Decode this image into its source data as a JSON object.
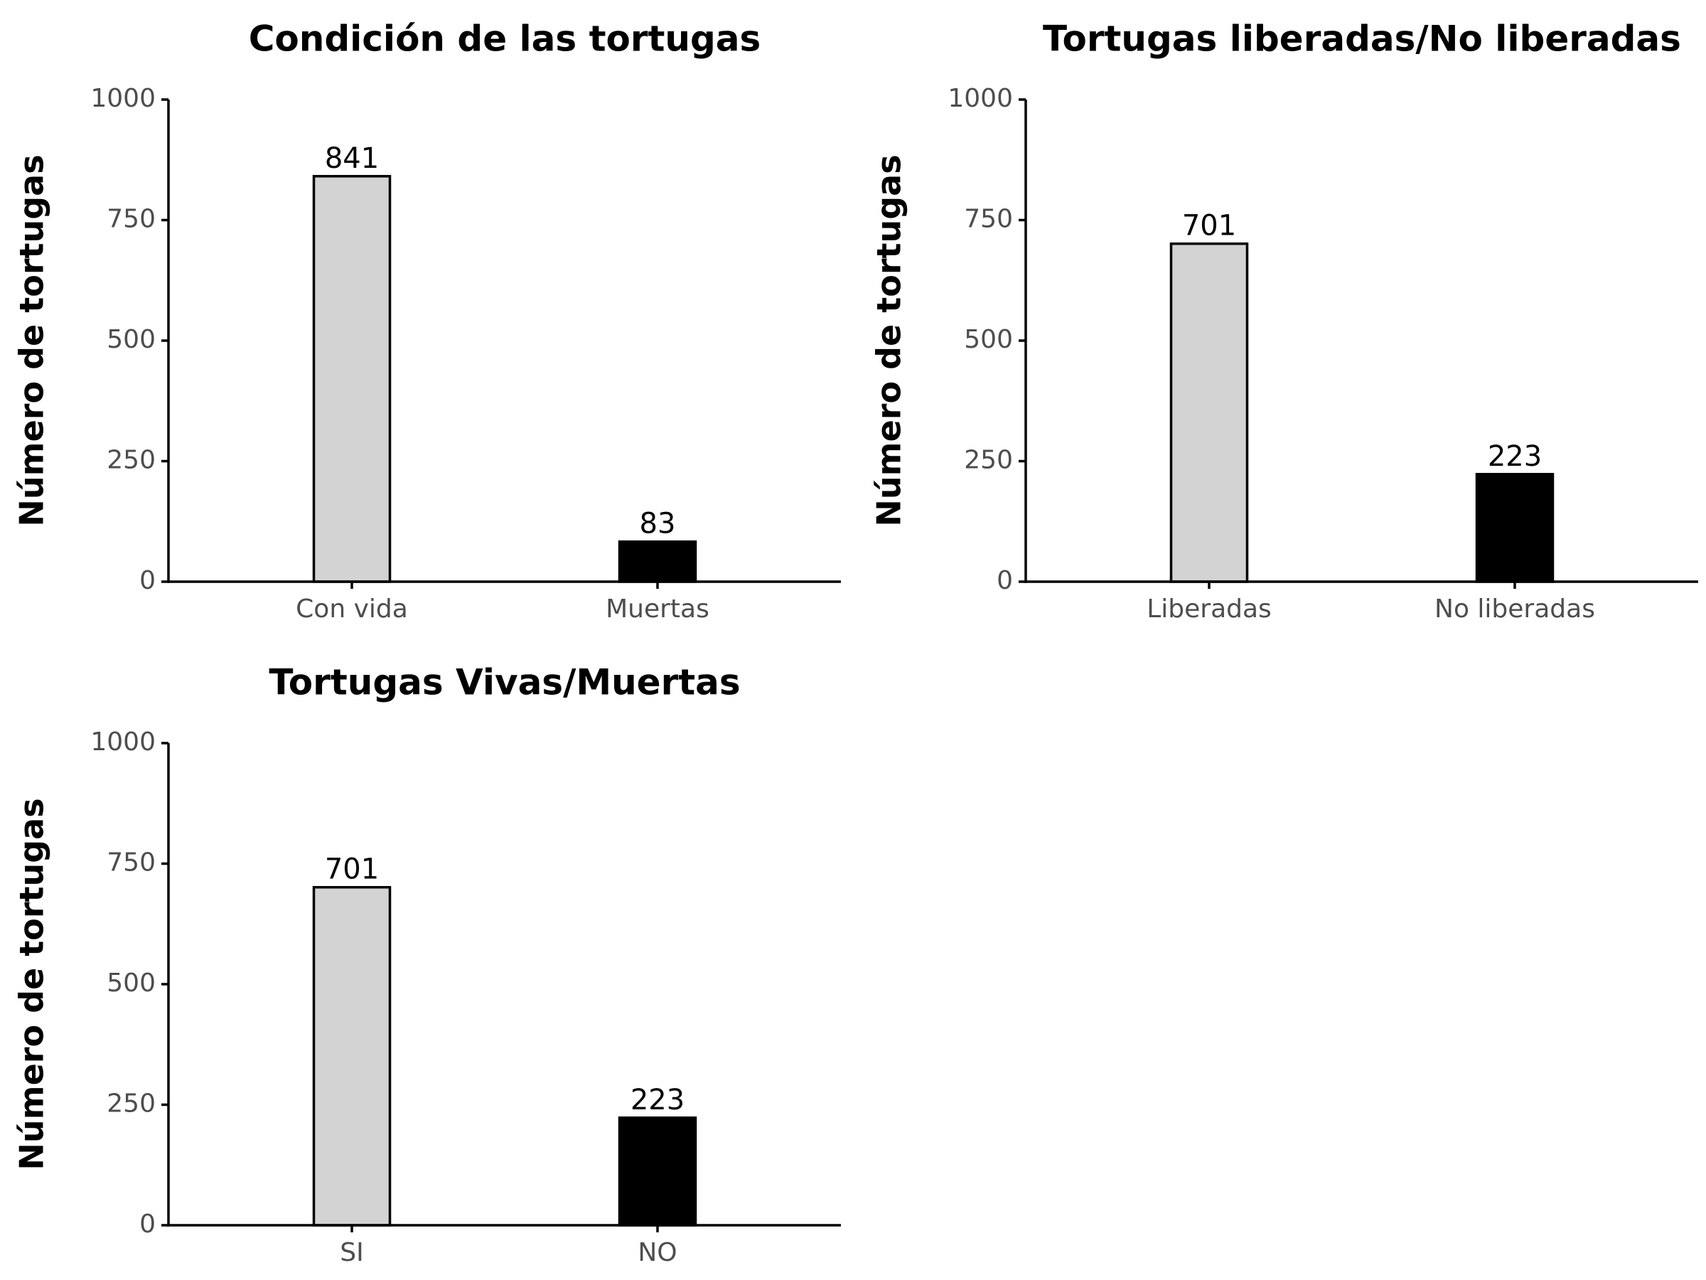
{
  "chart_data": [
    {
      "type": "bar",
      "title": "Condición de las tortugas",
      "xlabel": "",
      "ylabel": "Número de tortugas",
      "ylim": [
        0,
        1000
      ],
      "yticks": [
        "0",
        "250",
        "500",
        "750",
        "1000"
      ],
      "categories": [
        "Con vida",
        "Muertas"
      ],
      "values": [
        841,
        83
      ],
      "data_labels": [
        "841",
        "83"
      ],
      "bar_colors": [
        "#d3d3d3",
        "#000000"
      ],
      "grid": false,
      "legend": "none"
    },
    {
      "type": "bar",
      "title": "Tortugas liberadas/No liberadas",
      "xlabel": "",
      "ylabel": "Número de tortugas",
      "ylim": [
        0,
        1000
      ],
      "yticks": [
        "0",
        "250",
        "500",
        "750",
        "1000"
      ],
      "categories": [
        "Liberadas",
        "No liberadas"
      ],
      "values": [
        701,
        223
      ],
      "data_labels": [
        "701",
        "223"
      ],
      "bar_colors": [
        "#d3d3d3",
        "#000000"
      ],
      "grid": false,
      "legend": "none"
    },
    {
      "type": "bar",
      "title": "Tortugas Vivas/Muertas",
      "xlabel": "",
      "ylabel": "Número de tortugas",
      "ylim": [
        0,
        1000
      ],
      "yticks": [
        "0",
        "250",
        "500",
        "750",
        "1000"
      ],
      "categories": [
        "SI",
        "NO"
      ],
      "values": [
        701,
        223
      ],
      "data_labels": [
        "701",
        "223"
      ],
      "bar_colors": [
        "#d3d3d3",
        "#000000"
      ],
      "grid": false,
      "legend": "none"
    }
  ]
}
